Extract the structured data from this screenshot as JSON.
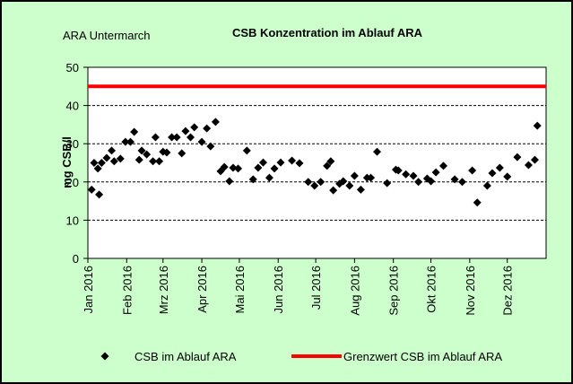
{
  "chart_data": {
    "type": "scatter",
    "title": "CSB Konzentration im Ablauf ARA",
    "subtitle": "ARA Untermarch",
    "y_label": "mg CSB/l",
    "xlim": [
      0,
      366
    ],
    "xticks": [
      {
        "value": 0,
        "label": "Jan 2016"
      },
      {
        "value": 31,
        "label": "Feb 2016"
      },
      {
        "value": 60,
        "label": "Mrz 2016"
      },
      {
        "value": 91,
        "label": "Apr 2016"
      },
      {
        "value": 121,
        "label": "Mai 2016"
      },
      {
        "value": 152,
        "label": "Jun 2016"
      },
      {
        "value": 182,
        "label": "Jul 2016"
      },
      {
        "value": 213,
        "label": "Aug 2016"
      },
      {
        "value": 244,
        "label": "Sep 2016"
      },
      {
        "value": 274,
        "label": "Okt 2016"
      },
      {
        "value": 305,
        "label": "Nov 2016"
      },
      {
        "value": 335,
        "label": "Dez 2016"
      }
    ],
    "ylim": [
      0,
      50
    ],
    "yticks": [
      0,
      10,
      20,
      30,
      40,
      50
    ],
    "grid": true,
    "legend": "bottom",
    "series": [
      {
        "name": "CSB im Ablauf ARA",
        "type": "scatter",
        "color": "#000000",
        "x": [
          3,
          5,
          9,
          8,
          11,
          15,
          19,
          21,
          26,
          30,
          34,
          37,
          41,
          43,
          47,
          52,
          54,
          57,
          60,
          63,
          67,
          71,
          75,
          78,
          82,
          85,
          91,
          95,
          98,
          102,
          106,
          109,
          113,
          116,
          120,
          127,
          132,
          136,
          140,
          145,
          149,
          154,
          163,
          169,
          176,
          181,
          186,
          191,
          194,
          196,
          201,
          204,
          209,
          213,
          218,
          223,
          226,
          231,
          239,
          246,
          248,
          254,
          260,
          264,
          271,
          274,
          278,
          284,
          293,
          299,
          307,
          311,
          319,
          323,
          329,
          335,
          343,
          352,
          357,
          359
        ],
        "values": [
          18,
          25,
          16.7,
          23.5,
          25,
          26.3,
          28.2,
          25.4,
          26.1,
          30.5,
          30.5,
          33.1,
          25.8,
          28.2,
          27.2,
          25.4,
          31.7,
          25.4,
          27.9,
          27.7,
          31.7,
          31.7,
          27.5,
          33.3,
          31.7,
          34.3,
          30.5,
          34,
          29.3,
          35.7,
          22.8,
          23.9,
          20.2,
          23.7,
          23.5,
          28.2,
          20.7,
          23.7,
          25.1,
          21.1,
          23.5,
          25.1,
          25.6,
          24.9,
          20,
          19,
          20,
          24.2,
          25.4,
          17.8,
          19.5,
          20.2,
          19,
          21.6,
          18,
          21.1,
          21.1,
          27.9,
          19.7,
          23.2,
          23,
          22,
          21.6,
          20,
          20.9,
          20.2,
          22.5,
          24.2,
          20.7,
          20,
          23,
          14.6,
          19,
          22.3,
          23.7,
          21.4,
          26.5,
          24.4,
          25.8,
          34.7
        ]
      },
      {
        "name": "Grenzwert CSB im Ablauf ARA",
        "type": "line",
        "color": "#ff0000",
        "x": [
          0,
          366
        ],
        "values": [
          45,
          45
        ]
      }
    ]
  }
}
